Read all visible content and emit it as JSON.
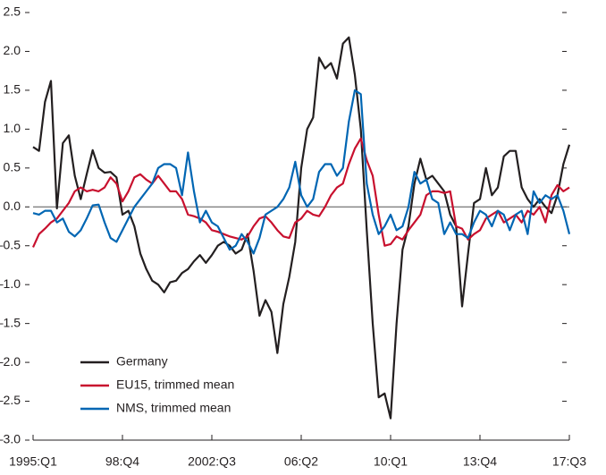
{
  "chart_data": {
    "type": "line",
    "categories": [
      "1995:Q1",
      null,
      null,
      null,
      null,
      null,
      null,
      null,
      null,
      null,
      null,
      null,
      null,
      null,
      null,
      "98:Q4",
      null,
      null,
      null,
      null,
      null,
      null,
      null,
      null,
      null,
      null,
      null,
      null,
      null,
      null,
      "2002:Q3",
      null,
      null,
      null,
      null,
      null,
      null,
      null,
      null,
      null,
      null,
      null,
      null,
      null,
      null,
      "06:Q2",
      null,
      null,
      null,
      null,
      null,
      null,
      null,
      null,
      null,
      null,
      null,
      null,
      null,
      null,
      "10:Q1",
      null,
      null,
      null,
      null,
      null,
      null,
      null,
      null,
      null,
      null,
      null,
      null,
      null,
      null,
      "13:Q4",
      null,
      null,
      null,
      null,
      null,
      null,
      null,
      null,
      null,
      null,
      null,
      null,
      null,
      null,
      "17:Q3"
    ],
    "series": [
      {
        "name": "Germany",
        "color": "#231f20",
        "values": [
          0.77,
          0.72,
          1.35,
          1.62,
          -0.02,
          0.82,
          0.92,
          0.4,
          0.1,
          0.42,
          0.73,
          0.5,
          0.44,
          0.45,
          0.38,
          -0.1,
          -0.05,
          -0.25,
          -0.6,
          -0.8,
          -0.95,
          -1.0,
          -1.1,
          -0.97,
          -0.95,
          -0.85,
          -0.8,
          -0.7,
          -0.62,
          -0.72,
          -0.62,
          -0.5,
          -0.45,
          -0.5,
          -0.6,
          -0.55,
          -0.35,
          -0.82,
          -1.4,
          -1.2,
          -1.35,
          -1.88,
          -1.25,
          -0.9,
          -0.45,
          0.5,
          1.0,
          1.15,
          1.92,
          1.78,
          1.85,
          1.65,
          2.1,
          2.18,
          1.7,
          1.0,
          -0.3,
          -1.5,
          -2.45,
          -2.4,
          -2.72,
          -1.5,
          -0.55,
          -0.25,
          0.3,
          0.62,
          0.35,
          0.4,
          0.3,
          0.2,
          -0.1,
          -0.25,
          -1.28,
          -0.6,
          0.05,
          0.1,
          0.5,
          0.15,
          0.25,
          0.65,
          0.72,
          0.72,
          0.25,
          0.1,
          0.0,
          0.1,
          0.0,
          -0.08,
          0.15,
          0.55,
          0.8
        ]
      },
      {
        "name": "EU15, trimmed mean",
        "color": "#c8102e",
        "values": [
          -0.52,
          -0.35,
          -0.28,
          -0.2,
          -0.15,
          -0.05,
          0.05,
          0.2,
          0.25,
          0.2,
          0.22,
          0.2,
          0.25,
          0.38,
          0.3,
          0.07,
          0.2,
          0.38,
          0.42,
          0.35,
          0.3,
          0.4,
          0.3,
          0.2,
          0.2,
          0.1,
          -0.1,
          -0.12,
          -0.15,
          -0.2,
          -0.3,
          -0.32,
          -0.35,
          -0.38,
          -0.4,
          -0.42,
          -0.38,
          -0.25,
          -0.15,
          -0.12,
          -0.2,
          -0.3,
          -0.38,
          -0.4,
          -0.2,
          -0.15,
          -0.05,
          -0.1,
          -0.12,
          0.0,
          0.15,
          0.25,
          0.3,
          0.55,
          0.75,
          0.88,
          0.6,
          0.4,
          -0.1,
          -0.5,
          -0.48,
          -0.38,
          -0.42,
          -0.3,
          -0.2,
          -0.1,
          0.15,
          0.2,
          0.2,
          0.18,
          0.2,
          -0.25,
          -0.28,
          -0.42,
          -0.35,
          -0.3,
          -0.15,
          -0.1,
          -0.05,
          -0.2,
          -0.15,
          -0.1,
          -0.2,
          -0.05,
          -0.1,
          0.0,
          -0.2,
          0.15,
          0.28,
          0.2,
          0.25
        ]
      },
      {
        "name": "NMS, trimmed mean",
        "color": "#0066b3",
        "values": [
          -0.08,
          -0.1,
          -0.05,
          -0.05,
          -0.2,
          -0.15,
          -0.32,
          -0.38,
          -0.3,
          -0.15,
          0.02,
          0.03,
          -0.2,
          -0.4,
          -0.45,
          -0.3,
          -0.15,
          0.0,
          0.1,
          0.2,
          0.3,
          0.5,
          0.55,
          0.55,
          0.5,
          0.15,
          0.7,
          0.2,
          -0.2,
          -0.05,
          -0.2,
          -0.25,
          -0.4,
          -0.55,
          -0.5,
          -0.35,
          -0.45,
          -0.6,
          -0.4,
          -0.1,
          -0.05,
          0.0,
          0.1,
          0.25,
          0.58,
          0.15,
          0.0,
          0.1,
          0.45,
          0.55,
          0.55,
          0.4,
          0.5,
          1.1,
          1.5,
          1.45,
          0.3,
          -0.1,
          -0.35,
          -0.25,
          -0.1,
          -0.3,
          -0.25,
          0.0,
          0.45,
          0.3,
          0.35,
          0.1,
          0.05,
          -0.35,
          -0.2,
          -0.35,
          -0.35,
          -0.4,
          -0.2,
          -0.05,
          -0.1,
          -0.25,
          -0.05,
          -0.1,
          -0.3,
          -0.1,
          -0.05,
          -0.35,
          0.2,
          0.05,
          0.15,
          0.1,
          0.15,
          -0.05,
          -0.35
        ]
      }
    ],
    "ylim": [
      -3.0,
      2.5
    ],
    "yticks": [
      {
        "value": -3.0,
        "label": "–3.0"
      },
      {
        "value": -2.5,
        "label": "–2.5"
      },
      {
        "value": -2.0,
        "label": "–2.0"
      },
      {
        "value": -1.5,
        "label": "–1.5"
      },
      {
        "value": -1.0,
        "label": "–1.0"
      },
      {
        "value": -0.5,
        "label": "–0.5"
      },
      {
        "value": 0,
        "label": "0.0"
      },
      0.5,
      {
        "value": 1,
        "label": "1.0"
      },
      1.5,
      {
        "value": 2,
        "label": "2.0"
      },
      2.5
    ],
    "right_axis_ticks": true,
    "zero_line": true,
    "legend": "lower left"
  }
}
